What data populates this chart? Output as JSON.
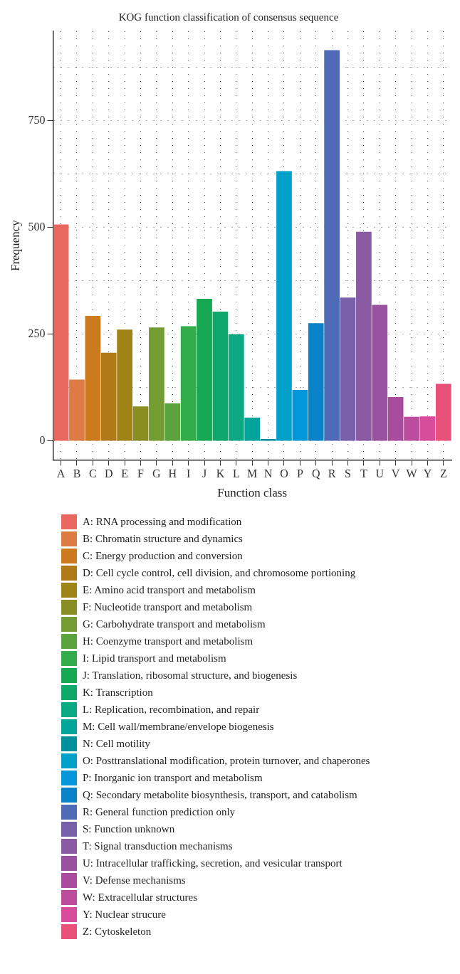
{
  "chart_data": {
    "type": "bar",
    "title": "KOG function classification of consensus sequence",
    "xlabel": "Function class",
    "ylabel": "Frequency",
    "categories": [
      "A",
      "B",
      "C",
      "D",
      "E",
      "F",
      "G",
      "H",
      "I",
      "J",
      "K",
      "L",
      "M",
      "N",
      "O",
      "P",
      "Q",
      "R",
      "S",
      "T",
      "U",
      "V",
      "W",
      "Y",
      "Z"
    ],
    "series": [
      {
        "name": "A: RNA processing and modification",
        "color": "#e8675f",
        "values": [
          507,
          null,
          null,
          null,
          null,
          null,
          null,
          null,
          null,
          null,
          null,
          null,
          null,
          null,
          null,
          null,
          null,
          null,
          null,
          null,
          null,
          null,
          null,
          null,
          null
        ]
      },
      {
        "name": "B: Chromatin structure and dynamics",
        "color": "#dd7b45",
        "values": [
          null,
          144,
          null,
          null,
          null,
          null,
          null,
          null,
          null,
          null,
          null,
          null,
          null,
          null,
          null,
          null,
          null,
          null,
          null,
          null,
          null,
          null,
          null,
          null,
          null
        ]
      },
      {
        "name": "C: Energy production and conversion",
        "color": "#cb7a1e",
        "values": [
          null,
          null,
          293,
          null,
          null,
          null,
          null,
          null,
          null,
          null,
          null,
          null,
          null,
          null,
          null,
          null,
          null,
          null,
          null,
          null,
          null,
          null,
          null,
          null,
          null
        ]
      },
      {
        "name": "D: Cell cycle control, cell division, and chromosome portioning",
        "color": "#b07a18",
        "values": [
          null,
          null,
          null,
          207,
          null,
          null,
          null,
          null,
          null,
          null,
          null,
          null,
          null,
          null,
          null,
          null,
          null,
          null,
          null,
          null,
          null,
          null,
          null,
          null,
          null
        ]
      },
      {
        "name": "E: Amino acid transport and metabolism",
        "color": "#a08317",
        "values": [
          null,
          null,
          null,
          null,
          261,
          null,
          null,
          null,
          null,
          null,
          null,
          null,
          null,
          null,
          null,
          null,
          null,
          null,
          null,
          null,
          null,
          null,
          null,
          null,
          null
        ]
      },
      {
        "name": "F: Nucleotide transport and metabolism",
        "color": "#8a8d21",
        "values": [
          null,
          null,
          null,
          null,
          null,
          81,
          null,
          null,
          null,
          null,
          null,
          null,
          null,
          null,
          null,
          null,
          null,
          null,
          null,
          null,
          null,
          null,
          null,
          null,
          null
        ]
      },
      {
        "name": "G: Carbohydrate transport and metabolism",
        "color": "#739c33",
        "values": [
          null,
          null,
          null,
          null,
          null,
          null,
          266,
          null,
          null,
          null,
          null,
          null,
          null,
          null,
          null,
          null,
          null,
          null,
          null,
          null,
          null,
          null,
          null,
          null,
          null
        ]
      },
      {
        "name": "H: Coenzyme transport and metabolism",
        "color": "#5aa33f",
        "values": [
          null,
          null,
          null,
          null,
          null,
          null,
          null,
          88,
          null,
          null,
          null,
          null,
          null,
          null,
          null,
          null,
          null,
          null,
          null,
          null,
          null,
          null,
          null,
          null,
          null
        ]
      },
      {
        "name": "I: Lipid transport and metabolism",
        "color": "#33ad4b",
        "values": [
          null,
          null,
          null,
          null,
          null,
          null,
          null,
          null,
          269,
          null,
          null,
          null,
          null,
          null,
          null,
          null,
          null,
          null,
          null,
          null,
          null,
          null,
          null,
          null,
          null
        ]
      },
      {
        "name": "J: Translation, ribosomal structure, and biogenesis",
        "color": "#17a854",
        "values": [
          null,
          null,
          null,
          null,
          null,
          null,
          null,
          null,
          null,
          333,
          null,
          null,
          null,
          null,
          null,
          null,
          null,
          null,
          null,
          null,
          null,
          null,
          null,
          null,
          null
        ]
      },
      {
        "name": "K: Transcription",
        "color": "#0ea86c",
        "values": [
          null,
          null,
          null,
          null,
          null,
          null,
          null,
          null,
          null,
          null,
          303,
          null,
          null,
          null,
          null,
          null,
          null,
          null,
          null,
          null,
          null,
          null,
          null,
          null,
          null
        ]
      },
      {
        "name": "L: Replication, recombination, and repair",
        "color": "#0aa883",
        "values": [
          null,
          null,
          null,
          null,
          null,
          null,
          null,
          null,
          null,
          null,
          null,
          250,
          null,
          null,
          null,
          null,
          null,
          null,
          null,
          null,
          null,
          null,
          null,
          null,
          null
        ]
      },
      {
        "name": "M: Cell wall/membrane/envelope biogenesis",
        "color": "#00a49a",
        "values": [
          null,
          null,
          null,
          null,
          null,
          null,
          null,
          null,
          null,
          null,
          null,
          null,
          55,
          null,
          null,
          null,
          null,
          null,
          null,
          null,
          null,
          null,
          null,
          null,
          null
        ]
      },
      {
        "name": "N: Cell motility",
        "color": "#008f9c",
        "values": [
          null,
          null,
          null,
          null,
          null,
          null,
          null,
          null,
          null,
          null,
          null,
          null,
          null,
          5,
          null,
          null,
          null,
          null,
          null,
          null,
          null,
          null,
          null,
          null,
          null
        ]
      },
      {
        "name": "O: Posttranslational modification, protein turnover, and chaperones",
        "color": "#00a0c8",
        "values": [
          null,
          null,
          null,
          null,
          null,
          null,
          null,
          null,
          null,
          null,
          null,
          null,
          null,
          null,
          632,
          null,
          null,
          null,
          null,
          null,
          null,
          null,
          null,
          null,
          null
        ]
      },
      {
        "name": "P: Inorganic ion transport and metabolism",
        "color": "#0397da",
        "values": [
          null,
          null,
          null,
          null,
          null,
          null,
          null,
          null,
          null,
          null,
          null,
          null,
          null,
          null,
          null,
          120,
          null,
          null,
          null,
          null,
          null,
          null,
          null,
          null,
          null
        ]
      },
      {
        "name": "Q: Secondary metabolite biosynthesis, transport, and catabolism",
        "color": "#0a82c8",
        "values": [
          null,
          null,
          null,
          null,
          null,
          null,
          null,
          null,
          null,
          null,
          null,
          null,
          null,
          null,
          null,
          null,
          276,
          null,
          null,
          null,
          null,
          null,
          null,
          null,
          null
        ]
      },
      {
        "name": "R: General function prediction only",
        "color": "#506bb5",
        "values": [
          null,
          null,
          null,
          null,
          null,
          null,
          null,
          null,
          null,
          null,
          null,
          null,
          null,
          null,
          null,
          null,
          null,
          915,
          null,
          null,
          null,
          null,
          null,
          null,
          null
        ]
      },
      {
        "name": "S: Function unknown",
        "color": "#775fa9",
        "values": [
          null,
          null,
          null,
          null,
          null,
          null,
          null,
          null,
          null,
          null,
          null,
          null,
          null,
          null,
          null,
          null,
          null,
          null,
          336,
          null,
          null,
          null,
          null,
          null,
          null
        ]
      },
      {
        "name": "T: Signal transduction mechanisms",
        "color": "#8a5aa3",
        "values": [
          null,
          null,
          null,
          null,
          null,
          null,
          null,
          null,
          null,
          null,
          null,
          null,
          null,
          null,
          null,
          null,
          null,
          null,
          null,
          490,
          null,
          null,
          null,
          null,
          null
        ]
      },
      {
        "name": "U: Intracellular trafficking, secretion, and vesicular transport",
        "color": "#97519e",
        "values": [
          null,
          null,
          null,
          null,
          null,
          null,
          null,
          null,
          null,
          null,
          null,
          null,
          null,
          null,
          null,
          null,
          null,
          null,
          null,
          null,
          319,
          null,
          null,
          null,
          null
        ]
      },
      {
        "name": "V: Defense mechanisms",
        "color": "#a94c9e",
        "values": [
          null,
          null,
          null,
          null,
          null,
          null,
          null,
          null,
          null,
          null,
          null,
          null,
          null,
          null,
          null,
          null,
          null,
          null,
          null,
          null,
          null,
          103,
          null,
          null,
          null
        ]
      },
      {
        "name": "W: Extracellular structures",
        "color": "#bc4c9c",
        "values": [
          null,
          null,
          null,
          null,
          null,
          null,
          null,
          null,
          null,
          null,
          null,
          null,
          null,
          null,
          null,
          null,
          null,
          null,
          null,
          null,
          null,
          null,
          57,
          null,
          null
        ]
      },
      {
        "name": "Y: Nuclear strucure",
        "color": "#d94b9b",
        "values": [
          null,
          null,
          null,
          null,
          null,
          null,
          null,
          null,
          null,
          null,
          null,
          null,
          null,
          null,
          null,
          null,
          null,
          null,
          null,
          null,
          null,
          null,
          null,
          58,
          null
        ]
      },
      {
        "name": "Z: Cytoskeleton",
        "color": "#e8527a",
        "values": [
          null,
          null,
          null,
          null,
          null,
          null,
          null,
          null,
          null,
          null,
          null,
          null,
          null,
          null,
          null,
          null,
          null,
          null,
          null,
          null,
          null,
          null,
          null,
          null,
          134
        ]
      }
    ],
    "ylim": [
      -44,
      959
    ],
    "yticks": [
      0,
      {
        "value": 125,
        "label": null
      },
      250,
      {
        "value": 375,
        "label": null
      },
      500,
      {
        "value": 625,
        "label": null
      },
      750,
      {
        "value": 875,
        "label": null
      }
    ],
    "grid": true,
    "legend": "bottom"
  }
}
